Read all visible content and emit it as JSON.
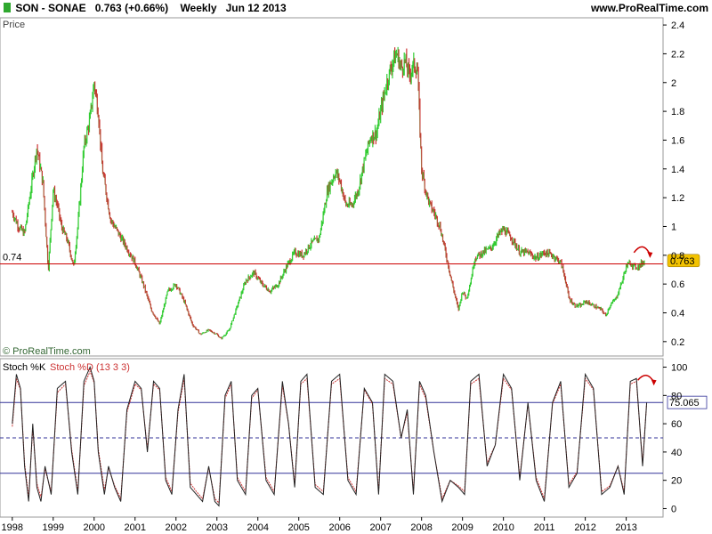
{
  "header": {
    "instrument": "SON - SONAE",
    "quote": "0.763 (+0.66%)",
    "period": "Weekly",
    "date": "Jun 12 2013",
    "site": "www.ProRealTime.com"
  },
  "price_panel": {
    "label": "Price",
    "copyright": "© ProRealTime.com",
    "level_label": "0.74",
    "current_label": "0.763"
  },
  "stoch_panel": {
    "k_label": "Stoch %K",
    "d_label": "Stoch %D (13 3 3)",
    "current_label": "75.065"
  },
  "colors": {
    "up_candle": "#33cc33",
    "down_candle": "#cc3333",
    "support_line": "#cc0000",
    "stoch_bands": "#333399",
    "price_badge": "#f2c200",
    "arrow": "#cc0000"
  },
  "chart_data": [
    {
      "type": "line",
      "name": "price",
      "x": [
        1998.0,
        1998.15,
        1998.3,
        1998.45,
        1998.6,
        1998.75,
        1998.88,
        1999.0,
        1999.1,
        1999.2,
        1999.35,
        1999.5,
        1999.6,
        1999.75,
        1999.9,
        2000.0,
        2000.1,
        2000.2,
        2000.4,
        2000.6,
        2000.8,
        2001.0,
        2001.2,
        2001.4,
        2001.6,
        2001.8,
        2002.0,
        2002.2,
        2002.4,
        2002.6,
        2002.8,
        2003.0,
        2003.1,
        2003.3,
        2003.5,
        2003.7,
        2003.9,
        2004.1,
        2004.3,
        2004.5,
        2004.7,
        2004.9,
        2005.1,
        2005.3,
        2005.5,
        2005.7,
        2005.9,
        2006.0,
        2006.15,
        2006.3,
        2006.45,
        2006.6,
        2006.75,
        2006.9,
        2007.0,
        2007.15,
        2007.3,
        2007.4,
        2007.5,
        2007.6,
        2007.7,
        2007.8,
        2007.9,
        2008.0,
        2008.1,
        2008.2,
        2008.3,
        2008.45,
        2008.6,
        2008.75,
        2008.9,
        2009.0,
        2009.1,
        2009.2,
        2009.3,
        2009.5,
        2009.7,
        2009.9,
        2010.0,
        2010.2,
        2010.4,
        2010.6,
        2010.8,
        2011.0,
        2011.2,
        2011.4,
        2011.5,
        2011.6,
        2011.75,
        2011.9,
        2012.0,
        2012.2,
        2012.4,
        2012.5,
        2012.6,
        2012.75,
        2012.9,
        2013.0,
        2013.1,
        2013.2,
        2013.3,
        2013.45
      ],
      "y": [
        1.1,
        1.0,
        0.95,
        1.25,
        1.55,
        1.3,
        0.7,
        1.25,
        1.15,
        1.0,
        0.9,
        0.72,
        1.0,
        1.55,
        1.75,
        2.0,
        1.8,
        1.4,
        1.05,
        0.95,
        0.85,
        0.75,
        0.6,
        0.42,
        0.32,
        0.55,
        0.6,
        0.48,
        0.32,
        0.25,
        0.28,
        0.25,
        0.22,
        0.28,
        0.45,
        0.62,
        0.68,
        0.6,
        0.55,
        0.6,
        0.72,
        0.82,
        0.8,
        0.88,
        0.92,
        1.25,
        1.38,
        1.32,
        1.15,
        1.15,
        1.25,
        1.45,
        1.62,
        1.65,
        1.8,
        2.0,
        2.15,
        2.2,
        2.1,
        2.15,
        2.05,
        2.12,
        2.1,
        1.4,
        1.25,
        1.15,
        1.1,
        1.0,
        0.8,
        0.6,
        0.42,
        0.55,
        0.5,
        0.62,
        0.78,
        0.82,
        0.85,
        0.95,
        0.98,
        0.92,
        0.82,
        0.82,
        0.78,
        0.82,
        0.8,
        0.75,
        0.65,
        0.5,
        0.45,
        0.45,
        0.48,
        0.45,
        0.42,
        0.38,
        0.45,
        0.5,
        0.62,
        0.72,
        0.75,
        0.72,
        0.72,
        0.763
      ]
    },
    {
      "type": "line",
      "name": "Stoch %K",
      "x": [
        1998.0,
        1998.1,
        1998.2,
        1998.3,
        1998.4,
        1998.5,
        1998.6,
        1998.7,
        1998.8,
        1998.95,
        1999.1,
        1999.3,
        1999.45,
        1999.6,
        1999.75,
        1999.9,
        2000.0,
        2000.1,
        2000.25,
        2000.35,
        2000.5,
        2000.65,
        2000.8,
        2001.0,
        2001.15,
        2001.3,
        2001.45,
        2001.6,
        2001.75,
        2001.9,
        2002.05,
        2002.2,
        2002.35,
        2002.5,
        2002.65,
        2002.8,
        2002.95,
        2003.05,
        2003.2,
        2003.35,
        2003.5,
        2003.7,
        2003.85,
        2004.0,
        2004.2,
        2004.4,
        2004.6,
        2004.75,
        2004.9,
        2005.05,
        2005.2,
        2005.4,
        2005.6,
        2005.8,
        2006.0,
        2006.2,
        2006.4,
        2006.6,
        2006.8,
        2006.95,
        2007.1,
        2007.3,
        2007.5,
        2007.65,
        2007.8,
        2007.95,
        2008.1,
        2008.3,
        2008.5,
        2008.7,
        2008.9,
        2009.05,
        2009.2,
        2009.4,
        2009.6,
        2009.8,
        2010.0,
        2010.2,
        2010.4,
        2010.6,
        2010.8,
        2011.0,
        2011.2,
        2011.4,
        2011.6,
        2011.8,
        2012.0,
        2012.2,
        2012.4,
        2012.6,
        2012.8,
        2012.95,
        2013.1,
        2013.25,
        2013.4,
        2013.5
      ],
      "y": [
        60,
        95,
        85,
        30,
        5,
        60,
        15,
        5,
        30,
        10,
        85,
        90,
        40,
        10,
        90,
        100,
        90,
        40,
        10,
        30,
        15,
        5,
        70,
        90,
        85,
        40,
        90,
        85,
        20,
        10,
        70,
        95,
        15,
        10,
        5,
        30,
        5,
        2,
        80,
        90,
        20,
        10,
        80,
        85,
        20,
        10,
        90,
        60,
        15,
        90,
        95,
        15,
        10,
        90,
        95,
        20,
        10,
        85,
        75,
        10,
        95,
        90,
        50,
        70,
        10,
        90,
        80,
        40,
        5,
        20,
        15,
        10,
        90,
        95,
        30,
        45,
        95,
        85,
        20,
        75,
        20,
        5,
        75,
        90,
        15,
        25,
        95,
        85,
        10,
        15,
        30,
        10,
        90,
        92,
        30,
        75
      ]
    },
    {
      "type": "line",
      "name": "Stoch %D (13 3 3)",
      "x": [
        1998.0,
        1998.1,
        1998.2,
        1998.3,
        1998.4,
        1998.5,
        1998.6,
        1998.7,
        1998.8,
        1998.95,
        1999.1,
        1999.3,
        1999.45,
        1999.6,
        1999.75,
        1999.9,
        2000.0,
        2000.1,
        2000.25,
        2000.35,
        2000.5,
        2000.65,
        2000.8,
        2001.0,
        2001.15,
        2001.3,
        2001.45,
        2001.6,
        2001.75,
        2001.9,
        2002.05,
        2002.2,
        2002.35,
        2002.5,
        2002.65,
        2002.8,
        2002.95,
        2003.05,
        2003.2,
        2003.35,
        2003.5,
        2003.7,
        2003.85,
        2004.0,
        2004.2,
        2004.4,
        2004.6,
        2004.75,
        2004.9,
        2005.05,
        2005.2,
        2005.4,
        2005.6,
        2005.8,
        2006.0,
        2006.2,
        2006.4,
        2006.6,
        2006.8,
        2006.95,
        2007.1,
        2007.3,
        2007.5,
        2007.65,
        2007.8,
        2007.95,
        2008.1,
        2008.3,
        2008.5,
        2008.7,
        2008.9,
        2009.05,
        2009.2,
        2009.4,
        2009.6,
        2009.8,
        2010.0,
        2010.2,
        2010.4,
        2010.6,
        2010.8,
        2011.0,
        2011.2,
        2011.4,
        2011.6,
        2011.8,
        2012.0,
        2012.2,
        2012.4,
        2012.6,
        2012.8,
        2012.95,
        2013.1,
        2013.25,
        2013.4,
        2013.5
      ],
      "y": [
        58,
        92,
        84,
        32,
        8,
        57,
        18,
        8,
        28,
        12,
        82,
        88,
        42,
        12,
        87,
        97,
        89,
        42,
        13,
        29,
        16,
        7,
        68,
        88,
        84,
        42,
        88,
        84,
        22,
        12,
        68,
        92,
        18,
        12,
        7,
        29,
        7,
        4,
        78,
        88,
        22,
        12,
        78,
        84,
        22,
        12,
        87,
        60,
        17,
        88,
        92,
        17,
        12,
        88,
        92,
        22,
        12,
        84,
        74,
        12,
        92,
        88,
        50,
        68,
        12,
        88,
        78,
        40,
        7,
        20,
        16,
        12,
        88,
        92,
        32,
        45,
        92,
        84,
        22,
        74,
        22,
        7,
        74,
        88,
        17,
        26,
        92,
        84,
        12,
        16,
        30,
        12,
        88,
        90,
        32,
        75
      ]
    }
  ],
  "axes": {
    "price_ticks": [
      "2.4",
      "2.2",
      "2",
      "1.8",
      "1.6",
      "1.4",
      "1.2",
      "1",
      "0.8",
      "0.6",
      "0.4",
      "0.2"
    ],
    "price_values": [
      2.4,
      2.2,
      2.0,
      1.8,
      1.6,
      1.4,
      1.2,
      1.0,
      0.8,
      0.6,
      0.4,
      0.2
    ],
    "stoch_ticks": [
      "100",
      "80",
      "60",
      "40",
      "20",
      "0"
    ],
    "stoch_values": [
      100,
      80,
      60,
      40,
      20,
      0
    ],
    "stoch_bands": [
      75,
      50,
      25
    ],
    "years": [
      "1998",
      "1999",
      "2000",
      "2001",
      "2002",
      "2003",
      "2004",
      "2005",
      "2006",
      "2007",
      "2008",
      "2009",
      "2010",
      "2011",
      "2012",
      "2013"
    ],
    "year_values": [
      1998,
      1999,
      2000,
      2001,
      2002,
      2003,
      2004,
      2005,
      2006,
      2007,
      2008,
      2009,
      2010,
      2011,
      2012,
      2013
    ],
    "support_level": 0.74,
    "current_price": 0.763,
    "current_stoch": 75.065
  }
}
